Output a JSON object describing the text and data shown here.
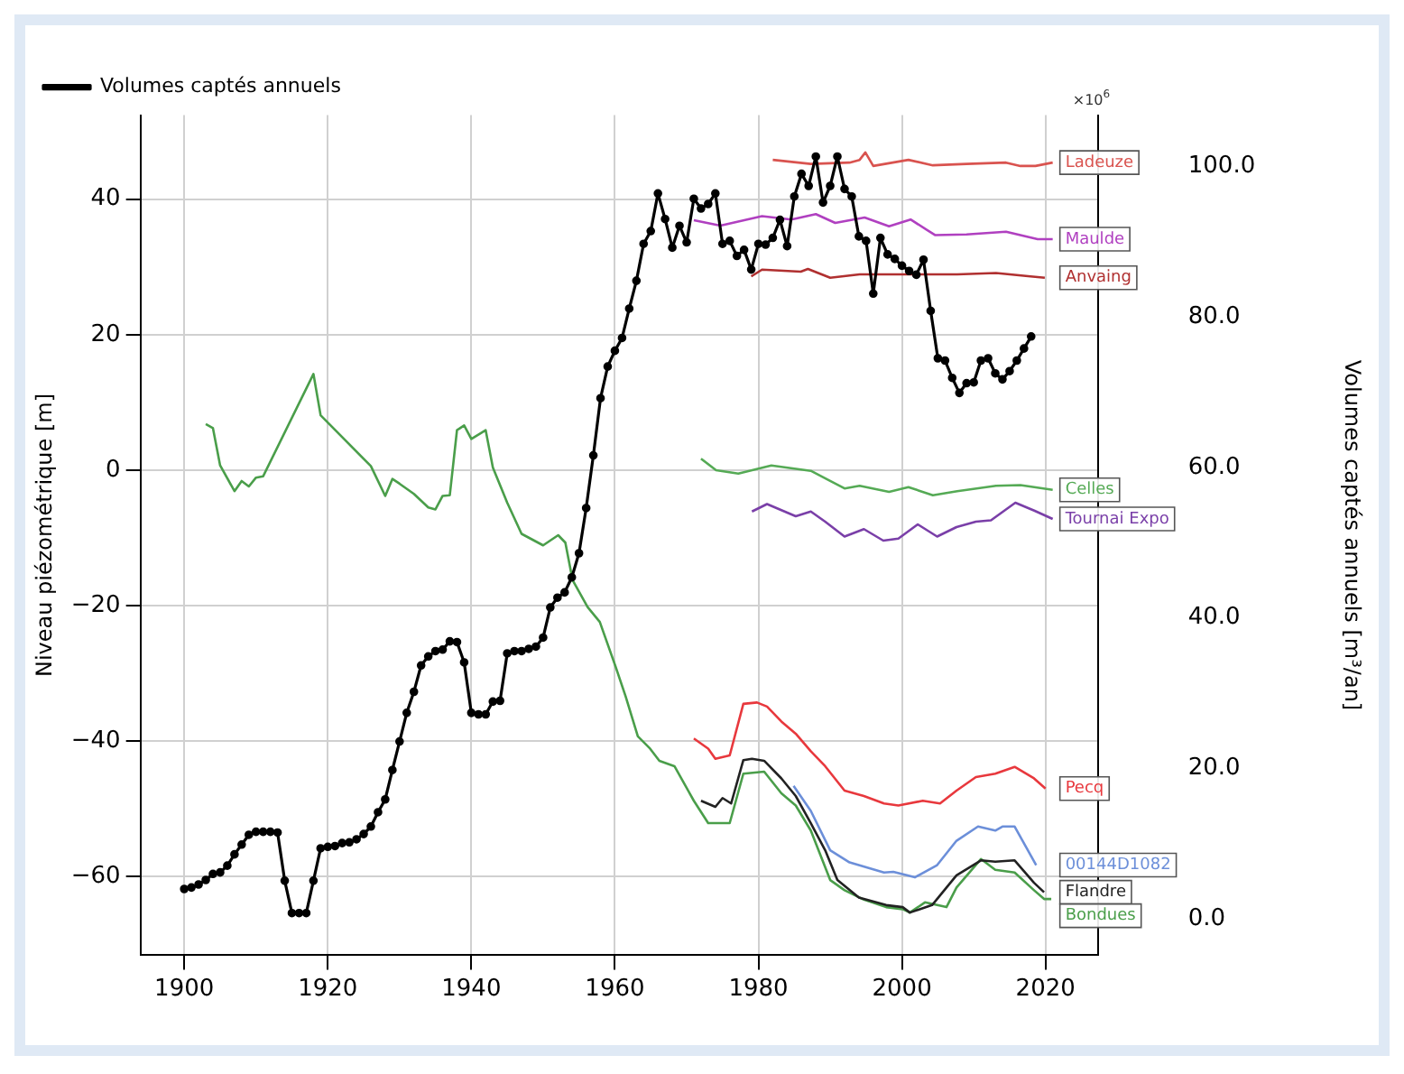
{
  "chart_data": {
    "type": "line",
    "xlabel": null,
    "ylabel": "Niveau piézométrique [m]",
    "y2label": "Volumes captés annuels [m³/an]",
    "annotations": [
      "×10$^{6}$"
    ],
    "xlim": [
      1893.9,
      2027.3
    ],
    "xticks": [
      1900,
      1920,
      1940,
      1960,
      1980,
      2000,
      2020
    ],
    "ylim": [
      -71.6,
      52.4
    ],
    "yticks": [
      -60,
      -40,
      -20,
      0,
      20,
      40
    ],
    "y2lim": [
      -4.8,
      106.8
    ],
    "y2ticks": [
      {
        "value": 0,
        "label": "0.0"
      },
      {
        "value": 20,
        "label": "20.0"
      },
      {
        "value": 40,
        "label": "40.0"
      },
      {
        "value": 60,
        "label": "60.0"
      },
      {
        "value": 80,
        "label": "80.0"
      },
      {
        "value": 100,
        "label": "100.0"
      }
    ],
    "grid": true,
    "legend": "top left",
    "marker": "none",
    "line_style": "solid",
    "series": [
      {
        "name": "Volumes captés annuels",
        "color": "#000000",
        "axis": "y2",
        "marker": "circle",
        "x": [
          1900,
          1901,
          1902,
          1903,
          1904,
          1905,
          1906,
          1907,
          1908,
          1909,
          1910,
          1911,
          1912,
          1913,
          1914,
          1915,
          1916,
          1917,
          1918,
          1919,
          1920,
          1921,
          1922,
          1923,
          1924,
          1925,
          1926,
          1927,
          1928,
          1929,
          1930,
          1931,
          1932,
          1933,
          1934,
          1935,
          1936,
          1937,
          1938,
          1939,
          1940,
          1941,
          1942,
          1943,
          1944,
          1945,
          1946,
          1947,
          1948,
          1949,
          1950,
          1951,
          1952,
          1953,
          1954,
          1955,
          1956,
          1957,
          1958,
          1959,
          1960,
          1961,
          1962,
          1963,
          1964,
          1965,
          1966,
          1967,
          1968,
          1969,
          1970,
          1971,
          1972,
          1973,
          1974,
          1975,
          1976,
          1977,
          1978,
          1979,
          1980,
          1981,
          1982,
          1983,
          1984,
          1985,
          1986,
          1987,
          1988,
          1989,
          1990,
          1991,
          1992,
          1993,
          1994,
          1995,
          1996,
          1997,
          1998,
          1999,
          2000,
          2001,
          2002,
          2003,
          2004,
          2005,
          2006,
          2007,
          2008,
          2009,
          2010,
          2011,
          2012,
          2013,
          2014,
          2015,
          2016,
          2017,
          2018
        ],
        "values": [
          4.0,
          4.2,
          4.6,
          5.2,
          6.0,
          6.2,
          7.1,
          8.6,
          9.9,
          11.2,
          11.6,
          11.6,
          11.6,
          11.5,
          5.1,
          0.8,
          0.8,
          0.8,
          5.1,
          9.4,
          9.6,
          9.7,
          10.1,
          10.2,
          10.6,
          11.3,
          12.3,
          14.2,
          15.9,
          19.8,
          23.6,
          27.4,
          30.2,
          33.7,
          34.9,
          35.6,
          35.8,
          36.9,
          36.8,
          34.1,
          27.4,
          27.2,
          27.2,
          28.9,
          29.0,
          35.3,
          35.6,
          35.6,
          35.9,
          36.2,
          37.4,
          41.4,
          42.7,
          43.4,
          45.4,
          48.6,
          54.6,
          61.6,
          69.2,
          73.4,
          75.5,
          77.2,
          81.1,
          84.8,
          89.7,
          91.4,
          96.4,
          93.0,
          89.2,
          92.1,
          89.9,
          95.7,
          94.4,
          95.0,
          96.4,
          89.7,
          90.1,
          88.1,
          88.9,
          86.3,
          89.7,
          89.6,
          90.5,
          92.9,
          89.4,
          96.0,
          99.0,
          97.4,
          101.3,
          95.2,
          97.4,
          101.3,
          97.0,
          96.0,
          90.7,
          90.1,
          83.1,
          90.5,
          88.3,
          87.7,
          86.8,
          86.1,
          85.6,
          87.6,
          80.8,
          74.5,
          74.2,
          71.9,
          69.9,
          71.2,
          71.3,
          74.2,
          74.5,
          72.5,
          71.7,
          72.8,
          74.2,
          75.8,
          77.4
        ]
      },
      {
        "name": "Ladeuze",
        "color": "#d9534f",
        "x": [
          1982,
          1987.3,
          1992.7,
          1994.1,
          1994.9,
          1996,
          2000.9,
          2004.3,
          2009,
          2014.5,
          2016.5,
          2018.6,
          2021
        ],
        "values": [
          45.8,
          45.2,
          45.4,
          45.8,
          46.9,
          44.9,
          45.8,
          45.0,
          45.2,
          45.4,
          44.9,
          44.9,
          45.4
        ]
      },
      {
        "name": "Maulde",
        "color": "#b040c0",
        "x": [
          1971,
          1974.7,
          1980.5,
          1984.6,
          1988,
          1990.7,
          1994.8,
          1998.2,
          2001.2,
          2004.6,
          2009,
          2014.5,
          2018.9,
          2021
        ],
        "values": [
          36.9,
          36.1,
          37.5,
          37.0,
          37.8,
          36.5,
          37.3,
          36.0,
          37.0,
          34.7,
          34.8,
          35.2,
          34.1,
          34.1
        ]
      },
      {
        "name": "Anvaing",
        "color": "#b03030",
        "x": [
          1979,
          1980.5,
          1985.9,
          1986.9,
          1990,
          1994.1,
          2000.9,
          2007.7,
          2013.1,
          2017.9,
          2019.9
        ],
        "values": [
          28.6,
          29.6,
          29.3,
          29.7,
          28.4,
          28.9,
          28.9,
          28.9,
          29.1,
          28.6,
          28.4
        ]
      },
      {
        "name": "Celles",
        "color": "#55aa55",
        "x": [
          1972,
          1974.1,
          1977.2,
          1981.8,
          1987.3,
          1990,
          1992,
          1994.1,
          1998.2,
          2000.9,
          2004.3,
          2007.7,
          2013.1,
          2016.5,
          2021
        ],
        "values": [
          1.7,
          0,
          -0.5,
          0.7,
          -0.1,
          -1.6,
          -2.7,
          -2.3,
          -3.2,
          -2.5,
          -3.7,
          -3.1,
          -2.3,
          -2.2,
          -2.9
        ]
      },
      {
        "name": "Tournai Expo",
        "color": "#7a3fa8",
        "x": [
          1979.1,
          1981.2,
          1985.2,
          1987.3,
          1989.3,
          1992,
          1994.7,
          1997.4,
          1999.5,
          2002.2,
          2004.9,
          2007.6,
          2010.3,
          2012.4,
          2015.8,
          2018.5,
          2021
        ],
        "values": [
          -6.1,
          -5.0,
          -6.8,
          -6.1,
          -7.6,
          -9.8,
          -8.7,
          -10.4,
          -10.1,
          -8.0,
          -9.8,
          -8.4,
          -7.6,
          -7.4,
          -4.8,
          -6.0,
          -7.2
        ]
      },
      {
        "name": "Pecq",
        "color": "#e8383d",
        "x": [
          1971,
          1973,
          1974,
          1976,
          1977.9,
          1979.8,
          1981.2,
          1983.2,
          1985.2,
          1987.3,
          1989.3,
          1992,
          1994.7,
          1997.5,
          1999.5,
          2002.9,
          2005.3,
          2007.6,
          2010.3,
          2013,
          2015.7,
          2018.4,
          2020
        ],
        "values": [
          -39.6,
          -41.1,
          -42.6,
          -42.1,
          -34.5,
          -34.3,
          -34.9,
          -37.1,
          -38.9,
          -41.5,
          -43.7,
          -47.3,
          -48.1,
          -49.2,
          -49.5,
          -48.8,
          -49.2,
          -47.3,
          -45.3,
          -44.8,
          -43.8,
          -45.5,
          -47.0
        ]
      },
      {
        "name": "00144D1082",
        "color": "#6c8fd9",
        "x": [
          1984.9,
          1987.3,
          1990,
          1992.7,
          1997.5,
          1998.8,
          2001.8,
          2004.9,
          2007.6,
          2010.6,
          2013,
          2014,
          2015.7,
          2018.7
        ],
        "values": [
          -46.6,
          -50.3,
          -56.1,
          -57.9,
          -59.4,
          -59.3,
          -60.1,
          -58.3,
          -54.7,
          -52.6,
          -53.2,
          -52.6,
          -52.6,
          -58.3
        ]
      },
      {
        "name": "Flandre",
        "color": "#222222",
        "x": [
          1972,
          1974,
          1975,
          1976.2,
          1977.9,
          1979.1,
          1980.8,
          1983.2,
          1985.2,
          1987.3,
          1989.3,
          1991,
          1994,
          1997.8,
          2000.1,
          2001.1,
          2004.2,
          2007.6,
          2011,
          2013,
          2015.7,
          2018.4,
          2019.8
        ],
        "values": [
          -48.8,
          -49.7,
          -48.4,
          -49.2,
          -42.8,
          -42.6,
          -42.9,
          -45.5,
          -48.1,
          -52.1,
          -56.1,
          -60.5,
          -63.1,
          -64.2,
          -64.5,
          -65.3,
          -64.2,
          -59.8,
          -57.6,
          -57.8,
          -57.6,
          -60.9,
          -62.3
        ]
      },
      {
        "name": "Bondues",
        "color": "#4a9e4a",
        "x": [
          1903,
          1904,
          1905,
          1907,
          1908,
          1909,
          1910,
          1911,
          1918,
          1919,
          1926,
          1928,
          1929,
          1930,
          1932,
          1934,
          1935,
          1936,
          1937,
          1938,
          1939,
          1940,
          1942,
          1943,
          1945,
          1947,
          1950,
          1952.1,
          1953.1,
          1954.1,
          1956.2,
          1957.9,
          1960.1,
          1961.5,
          1963.2,
          1964.9,
          1966.2,
          1968.3,
          1971,
          1973,
          1976,
          1977.9,
          1980.8,
          1983.2,
          1985.2,
          1987.3,
          1990,
          1992,
          1994.7,
          1997.8,
          2000.1,
          2001.1,
          2003.2,
          2006.2,
          2007.6,
          2011,
          2013,
          2015.7,
          2018.4,
          2019.8,
          2020.8
        ],
        "values": [
          6.8,
          6.2,
          0.7,
          -3.1,
          -1.6,
          -2.4,
          -1.1,
          -0.9,
          14.2,
          8.1,
          0.6,
          -3.8,
          -1.3,
          -2.0,
          -3.5,
          -5.5,
          -5.8,
          -3.8,
          -3.7,
          5.9,
          6.6,
          4.6,
          5.9,
          0.4,
          -4.8,
          -9.4,
          -11.1,
          -9.6,
          -10.7,
          -16.2,
          -20.2,
          -22.4,
          -29.0,
          -33.4,
          -39.3,
          -41.1,
          -42.9,
          -43.7,
          -48.8,
          -52.1,
          -52.1,
          -44.8,
          -44.5,
          -47.7,
          -49.5,
          -53.2,
          -60.5,
          -62.0,
          -63.4,
          -64.5,
          -64.8,
          -65.3,
          -63.8,
          -64.5,
          -61.6,
          -57.4,
          -59.0,
          -59.4,
          -62.0,
          -63.3,
          -63.3
        ]
      }
    ]
  }
}
